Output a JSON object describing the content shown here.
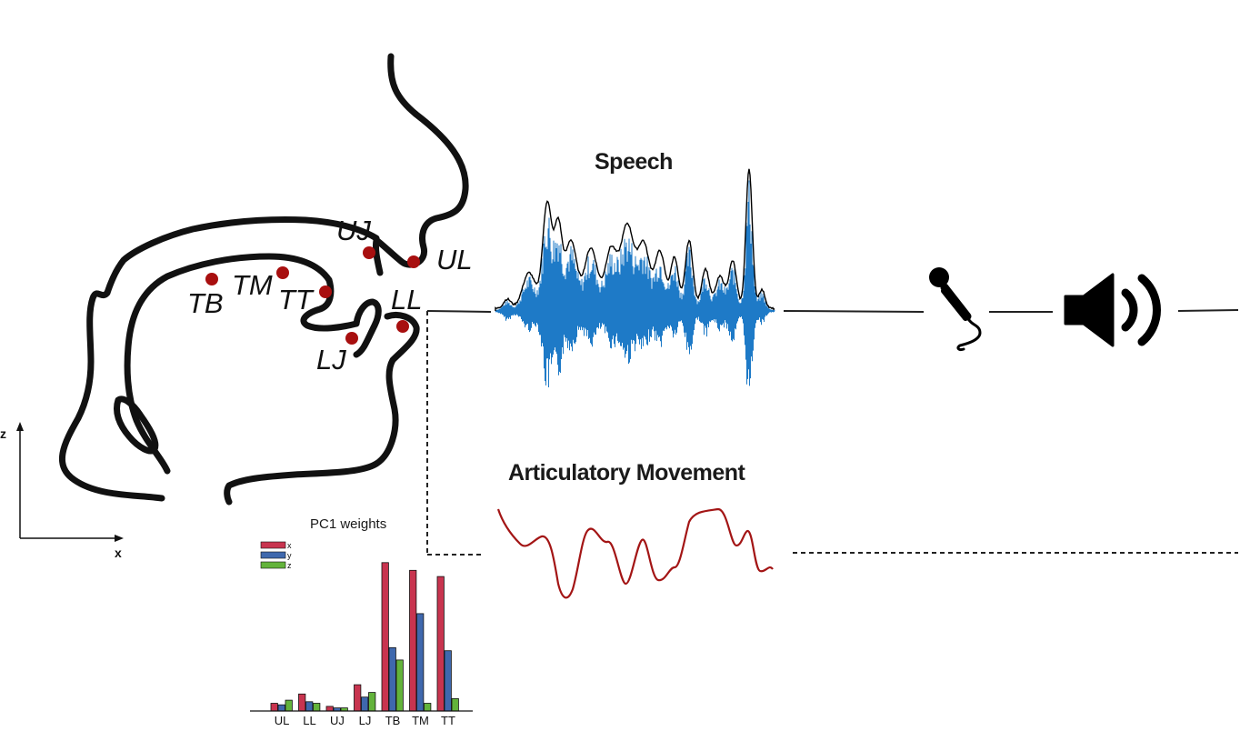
{
  "titles": {
    "speech": "Speech",
    "movement": "Articulatory Movement",
    "pc1": "PC1 weights"
  },
  "sensors": [
    {
      "id": "UJ",
      "label": "UJ"
    },
    {
      "id": "UL",
      "label": "UL"
    },
    {
      "id": "TB",
      "label": "TB"
    },
    {
      "id": "TM",
      "label": "TM"
    },
    {
      "id": "TT",
      "label": "TT"
    },
    {
      "id": "LL",
      "label": "LL"
    },
    {
      "id": "LJ",
      "label": "LJ"
    }
  ],
  "axes": {
    "vertical": "z",
    "horizontal": "x"
  },
  "colors": {
    "sensor_dot": "#a80f0f",
    "waveform_blue": "#1e7ac7",
    "waveform_envelope": "#000000",
    "movement_trace": "#a31515",
    "bar_x": "#c8344f",
    "bar_y": "#3f68ad",
    "bar_z": "#63b33b"
  },
  "icons": [
    "microphone-icon",
    "speaker-icon"
  ],
  "chart_data": {
    "type": "bar",
    "title": "PC1 weights",
    "categories": [
      "UL",
      "LL",
      "UJ",
      "LJ",
      "TB",
      "TM",
      "TT"
    ],
    "series": [
      {
        "name": "x",
        "values": [
          0.05,
          0.11,
          0.03,
          0.17,
          0.96,
          0.91,
          0.87
        ]
      },
      {
        "name": "y",
        "values": [
          0.04,
          0.06,
          0.02,
          0.09,
          0.41,
          0.63,
          0.39
        ]
      },
      {
        "name": "z",
        "values": [
          0.07,
          0.05,
          0.02,
          0.12,
          0.33,
          0.05,
          0.08
        ]
      }
    ],
    "ylim": [
      0,
      1
    ],
    "legend": "top-left",
    "grid": false
  }
}
